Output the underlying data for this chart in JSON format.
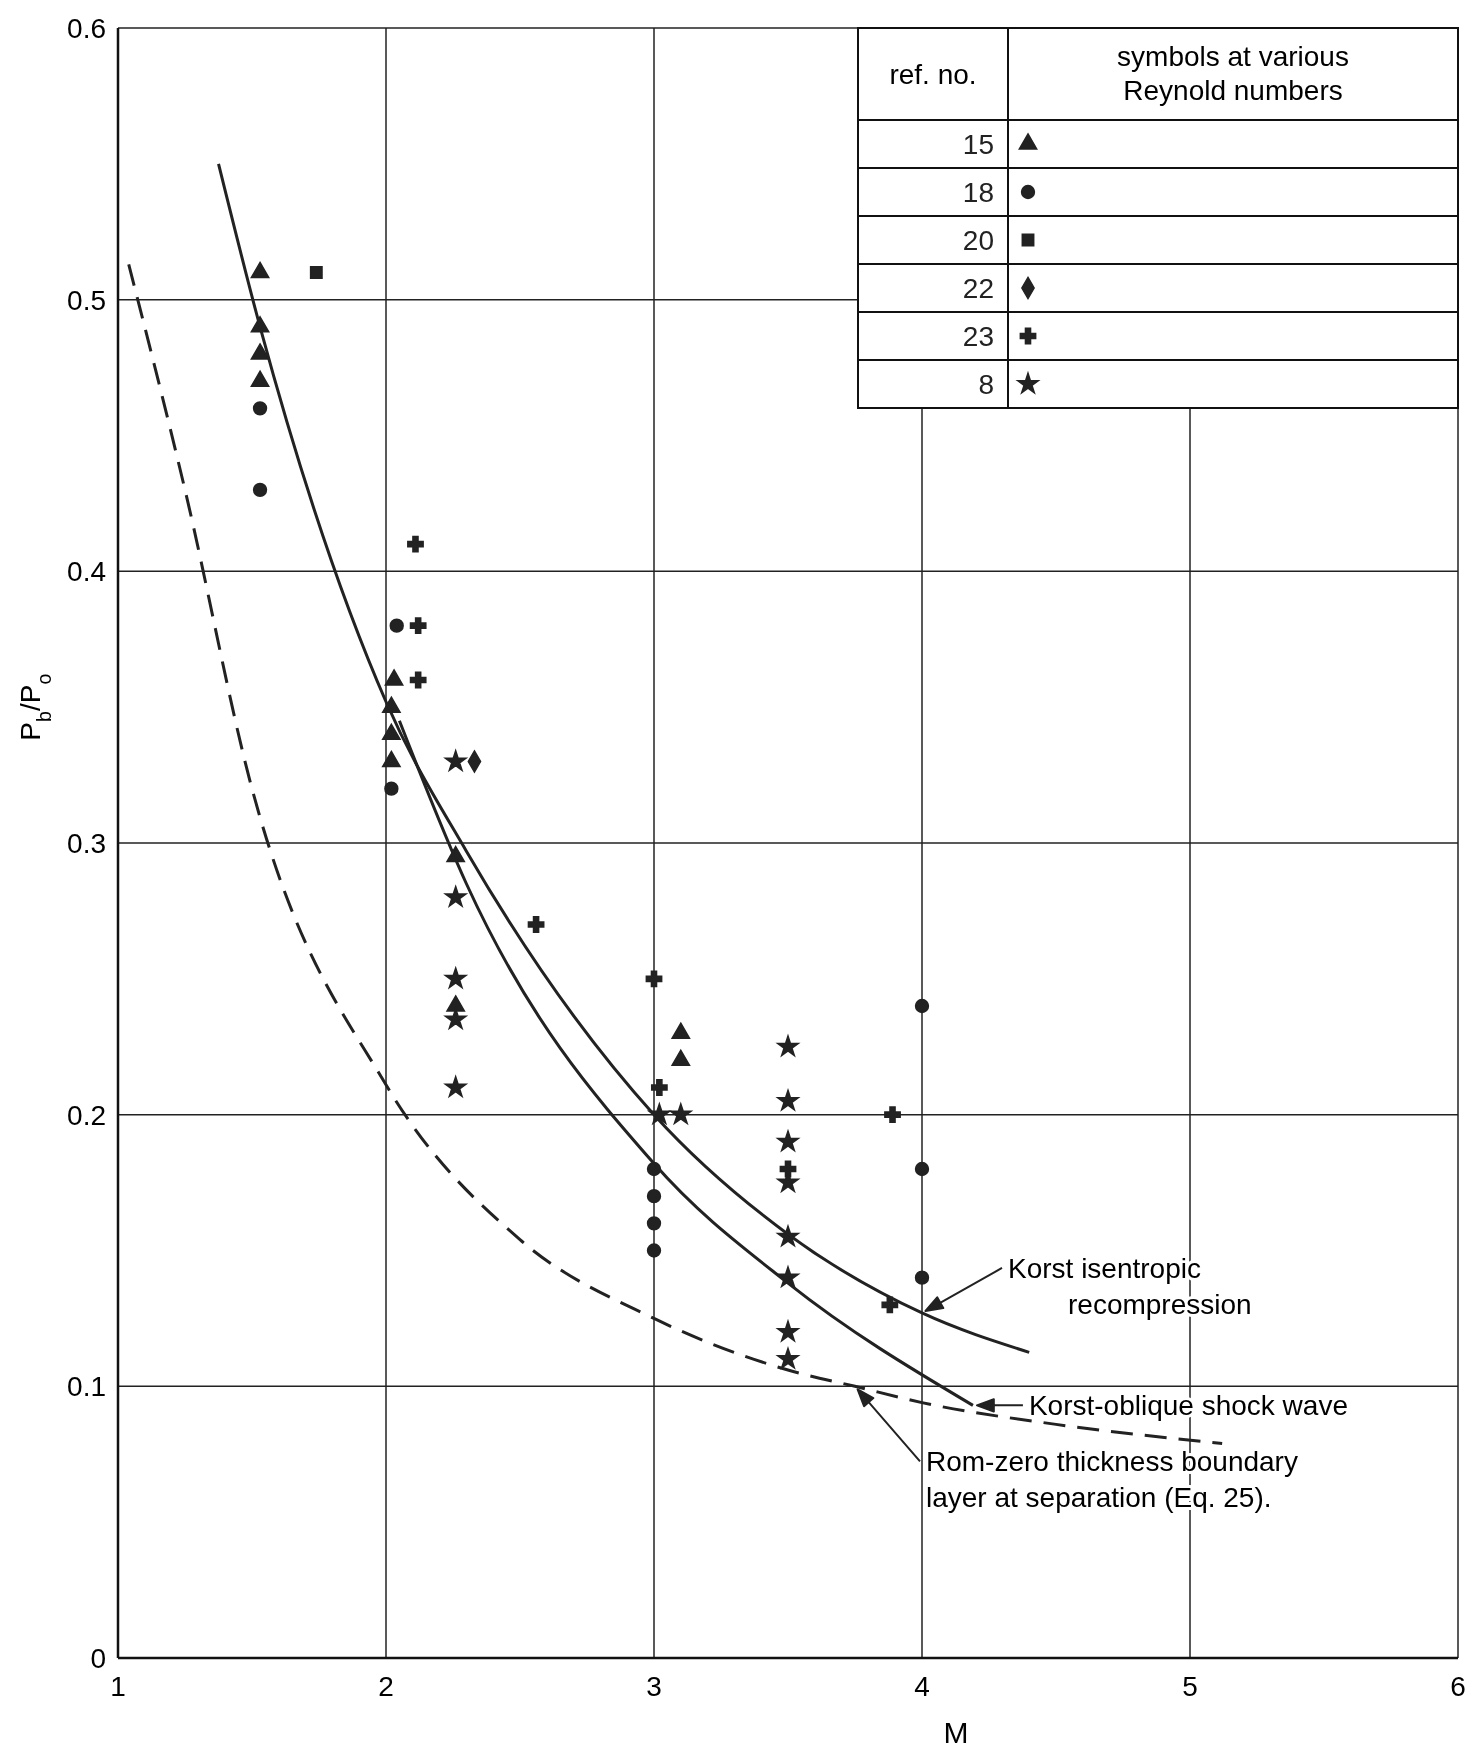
{
  "chart_data": {
    "type": "scatter",
    "xlabel": "M",
    "ylabel": "P$_{b}$/P$_{o}$",
    "legend_title": "symbols at various Reynold numbers",
    "annotations": [
      "ref. no."
    ],
    "xlim": [
      1,
      6
    ],
    "ylim": [
      0,
      0.6
    ],
    "xticks": [
      1,
      2,
      3,
      4,
      5,
      6
    ],
    "yticks": [
      0,
      0.1,
      0.2,
      0.3,
      0.4,
      0.5,
      0.6
    ],
    "grid": true,
    "legend": "top right",
    "series": [
      {
        "name": "15",
        "color": "#222222",
        "marker": "triangle",
        "x": [
          1.53,
          1.53,
          1.53,
          1.53,
          2.03,
          2.02,
          2.02,
          2.02,
          2.26,
          2.26,
          3.1,
          3.1
        ],
        "values": [
          0.51,
          0.49,
          0.48,
          0.47,
          0.36,
          0.35,
          0.34,
          0.33,
          0.295,
          0.24,
          0.23,
          0.22
        ]
      },
      {
        "name": "18",
        "color": "#222222",
        "marker": "circle",
        "x": [
          1.53,
          1.53,
          2.04,
          2.02,
          3.0,
          3.0,
          3.0,
          3.0,
          4.0,
          4.0,
          4.0
        ],
        "values": [
          0.46,
          0.43,
          0.38,
          0.32,
          0.18,
          0.17,
          0.16,
          0.15,
          0.24,
          0.18,
          0.14
        ]
      },
      {
        "name": "20",
        "color": "#222222",
        "marker": "square",
        "x": [
          1.74
        ],
        "values": [
          0.51
        ]
      },
      {
        "name": "22",
        "color": "#222222",
        "marker": "diamond",
        "x": [
          2.33
        ],
        "values": [
          0.33
        ]
      },
      {
        "name": "23",
        "color": "#222222",
        "marker": "cross",
        "x": [
          2.11,
          2.12,
          2.12,
          2.56,
          3.0,
          3.02,
          3.5,
          3.89,
          3.88
        ],
        "values": [
          0.41,
          0.38,
          0.36,
          0.27,
          0.25,
          0.21,
          0.18,
          0.2,
          0.13
        ]
      },
      {
        "name": "8",
        "color": "#222222",
        "marker": "star",
        "x": [
          2.26,
          2.26,
          2.26,
          2.26,
          2.26,
          3.02,
          3.1,
          3.5,
          3.5,
          3.5,
          3.5,
          3.5,
          3.5,
          3.5,
          3.5
        ],
        "values": [
          0.33,
          0.28,
          0.25,
          0.235,
          0.21,
          0.2,
          0.2,
          0.225,
          0.205,
          0.19,
          0.175,
          0.155,
          0.14,
          0.12,
          0.11
        ]
      },
      {
        "name": "Korst isentropic recompression",
        "type": "line",
        "color": "#222222",
        "line_style": "solid",
        "marker": "none",
        "x": [
          1.375,
          1.53,
          2,
          2.3,
          3,
          3.5,
          4,
          4.4
        ],
        "values": [
          0.55,
          0.49,
          0.352,
          0.297,
          0.2,
          0.156,
          0.127,
          0.1125
        ]
      },
      {
        "name": "Korst-oblique shock wave",
        "type": "line",
        "color": "#222222",
        "line_style": "solid",
        "marker": "none",
        "x": [
          2.05,
          2.3,
          3,
          3.5,
          4.19
        ],
        "values": [
          0.345,
          0.285,
          0.182,
          0.138,
          0.093
        ]
      },
      {
        "name": "Rom-zero thickness boundary layer at separation (Eq. 25).",
        "type": "line",
        "color": "#222222",
        "line_style": "dashed",
        "marker": "none",
        "x": [
          1.04,
          1.25,
          1.5,
          2,
          2.5,
          3,
          3.5,
          3.75,
          4,
          4.5,
          5.12
        ],
        "values": [
          0.513,
          0.43,
          0.32,
          0.211,
          0.154,
          0.125,
          0.106,
          0.1,
          0.094,
          0.086,
          0.079
        ]
      }
    ]
  }
}
